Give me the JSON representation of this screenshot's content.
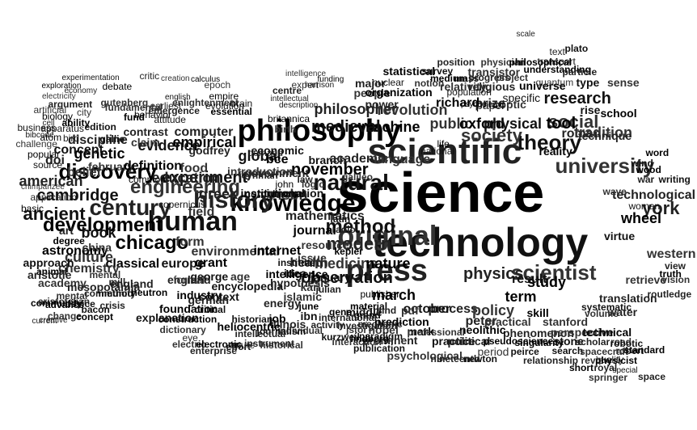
{
  "words": [
    "science",
    "technology",
    "scientific",
    "university",
    "knowledge",
    "human",
    "history",
    "original",
    "philosophy",
    "natural",
    "century",
    "engineering",
    "development",
    "theory",
    "press",
    "scientist",
    "discovery",
    "method",
    "york",
    "society",
    "chicago",
    "ancient",
    "modern",
    "culture",
    "november",
    "observation",
    "american",
    "social",
    "study",
    "research",
    "physics",
    "public",
    "oxford",
    "physical",
    "philosopher",
    "revolution",
    "tool",
    "experiment",
    "mathematics",
    "medicine",
    "nature",
    "book",
    "greek",
    "isbn",
    "journal",
    "cambridge",
    "technological",
    "western",
    "wheel",
    "woman",
    "process",
    "policy",
    "term",
    "result",
    "translation",
    "field",
    "march",
    "october",
    "peter",
    "period",
    "machine",
    "medieval",
    "education",
    "form",
    "empirical",
    "global",
    "computer",
    "environmental",
    "classical",
    "europe",
    "england",
    "chemistry",
    "astronomy",
    "encyclopedia",
    "art",
    "age",
    "bce",
    "economic",
    "government",
    "introduction",
    "institutional",
    "innovation",
    "health",
    "issue",
    "internet",
    "idea",
    "hypothesis",
    "islamic",
    "industry",
    "context",
    "energy",
    "food",
    "genetic",
    "evidence",
    "discipline",
    "february",
    "definition",
    "concept",
    "doi",
    "belief",
    "basic",
    "branch",
    "academic",
    "language",
    "life",
    "national",
    "prize",
    "optic",
    "reality",
    "rise",
    "roman",
    "tradition",
    "school",
    "type",
    "technique",
    "sense",
    "universe",
    "specific",
    "religious",
    "relativity",
    "richard",
    "paper",
    "power",
    "people",
    "organization",
    "nuclear",
    "major",
    "notion",
    "medium",
    "mass",
    "progress",
    "project",
    "popular",
    "source",
    "application",
    "academy",
    "animal",
    "approach",
    "aristotle",
    "aristotelian",
    "advance",
    "bacon",
    "community",
    "china",
    "degree",
    "complex",
    "activity",
    "mechanic",
    "material",
    "middle",
    "mind",
    "nobel",
    "mark",
    "practice",
    "political",
    "practical",
    "prediction",
    "paradigm",
    "phenomenon",
    "perspective",
    "technical",
    "stone",
    "scholar",
    "road",
    "singularity",
    "search",
    "robert",
    "stanford",
    "skill",
    "systematic",
    "routledge",
    "retrieve",
    "truth",
    "virtue",
    "view",
    "vision",
    "word",
    "writing",
    "war",
    "wave",
    "wood",
    "wind",
    "water",
    "volume",
    "understanding",
    "transport",
    "text",
    "transistor",
    "statistical",
    "survey",
    "scale",
    "quantum",
    "psychology",
    "population",
    "position",
    "physician",
    "philosophical",
    "plato",
    "particle",
    "pdf",
    "publisher",
    "publication",
    "prominent",
    "psychological",
    "neolithic",
    "newton",
    "nineteenth",
    "professional",
    "pseudoscience",
    "peirce",
    "relationship",
    "review",
    "physicist",
    "robotic",
    "royal",
    "springer",
    "short",
    "special",
    "space",
    "spacecraft",
    "standard",
    "quality",
    "radio",
    "resource",
    "kepler",
    "latin",
    "law",
    "logic",
    "john",
    "january",
    "julian",
    "karl",
    "june",
    "ibn",
    "illinois",
    "individual",
    "intelligence",
    "institute",
    "international",
    "jstor",
    "job",
    "journalism",
    "intellectual",
    "historical",
    "heliocentric",
    "historian",
    "instrument",
    "future",
    "grant",
    "george",
    "german",
    "formal",
    "foundation",
    "explanation",
    "england",
    "dictionary",
    "construction",
    "critical",
    "eye",
    "electric",
    "electronic",
    "effort",
    "enterprise",
    "enlightenment",
    "essential",
    "evolution",
    "feynman",
    "galileo",
    "gene",
    "grand",
    "investigation",
    "interaction",
    "lindberg",
    "kurzweil",
    "mesopotamia",
    "mental",
    "neutron",
    "method",
    "mill",
    "mental",
    "community",
    "device",
    "crisis",
    "change",
    "concept",
    "creative",
    "current",
    "chimpanzee",
    "atom",
    "business",
    "bird",
    "challenge",
    "ability",
    "apparatus",
    "argument",
    "artificial",
    "biology",
    "bibcode",
    "cell",
    "city",
    "common",
    "copernicus",
    "contrast",
    "claim",
    "behavior",
    "attitude",
    "earliest",
    "epoch",
    "empire",
    "english",
    "emergence",
    "fundamental",
    "fund",
    "gallie",
    "godfrey",
    "gutenberg",
    "debate",
    "edition",
    "economy",
    "electricity",
    "exploration",
    "experimentation",
    "critic",
    "creation",
    "calculus",
    "brain",
    "centre",
    "birth",
    "britannica",
    "description",
    "demand",
    "expert",
    "funding",
    "harrison",
    "intellectual",
    "intelligence",
    "kingdom",
    "ideology",
    "infrastructure",
    "knowledge",
    "modernity",
    "mathematical",
    "ideal",
    "ideas",
    "image"
  ]
}
